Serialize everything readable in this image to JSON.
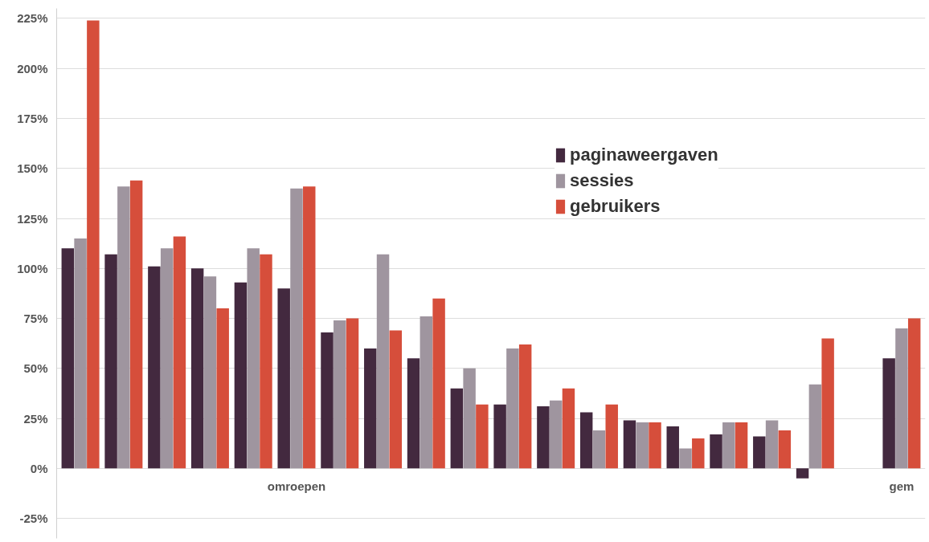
{
  "chart_data": {
    "type": "bar",
    "categories": [
      null,
      null,
      null,
      null,
      null,
      null,
      null,
      null,
      null,
      null,
      null,
      null,
      null,
      null,
      null,
      null,
      null,
      null,
      null,
      "gem"
    ],
    "series": [
      {
        "name": "paginaweergaven",
        "color": "#43293f",
        "values": [
          110,
          107,
          101,
          100,
          93,
          90,
          68,
          60,
          55,
          40,
          32,
          31,
          28,
          24,
          21,
          17,
          16,
          -5,
          null,
          55
        ]
      },
      {
        "name": "sessies",
        "color": "#9f959f",
        "values": [
          115,
          141,
          110,
          96,
          110,
          140,
          74,
          107,
          76,
          50,
          60,
          34,
          19,
          23,
          10,
          23,
          24,
          42,
          null,
          70
        ]
      },
      {
        "name": "gebruikers",
        "color": "#d64e3b",
        "values": [
          224,
          144,
          116,
          80,
          107,
          141,
          75,
          69,
          85,
          32,
          62,
          40,
          32,
          23,
          15,
          23,
          19,
          65,
          null,
          75
        ]
      }
    ],
    "ylim": [
      -35,
      230
    ],
    "yticks": [
      {
        "value": -25,
        "label": "-25%"
      },
      {
        "value": 0,
        "label": "0%"
      },
      {
        "value": 25,
        "label": "25%"
      },
      {
        "value": 50,
        "label": "50%"
      },
      {
        "value": 75,
        "label": "75%"
      },
      {
        "value": 100,
        "label": "100%"
      },
      {
        "value": 125,
        "label": "125%"
      },
      {
        "value": 150,
        "label": "150%"
      },
      {
        "value": 175,
        "label": "175%"
      },
      {
        "value": 200,
        "label": "200%"
      },
      {
        "value": 225,
        "label": "225%"
      }
    ],
    "grid": "y",
    "legend": "top right",
    "annotations": [
      "omroepen"
    ]
  }
}
